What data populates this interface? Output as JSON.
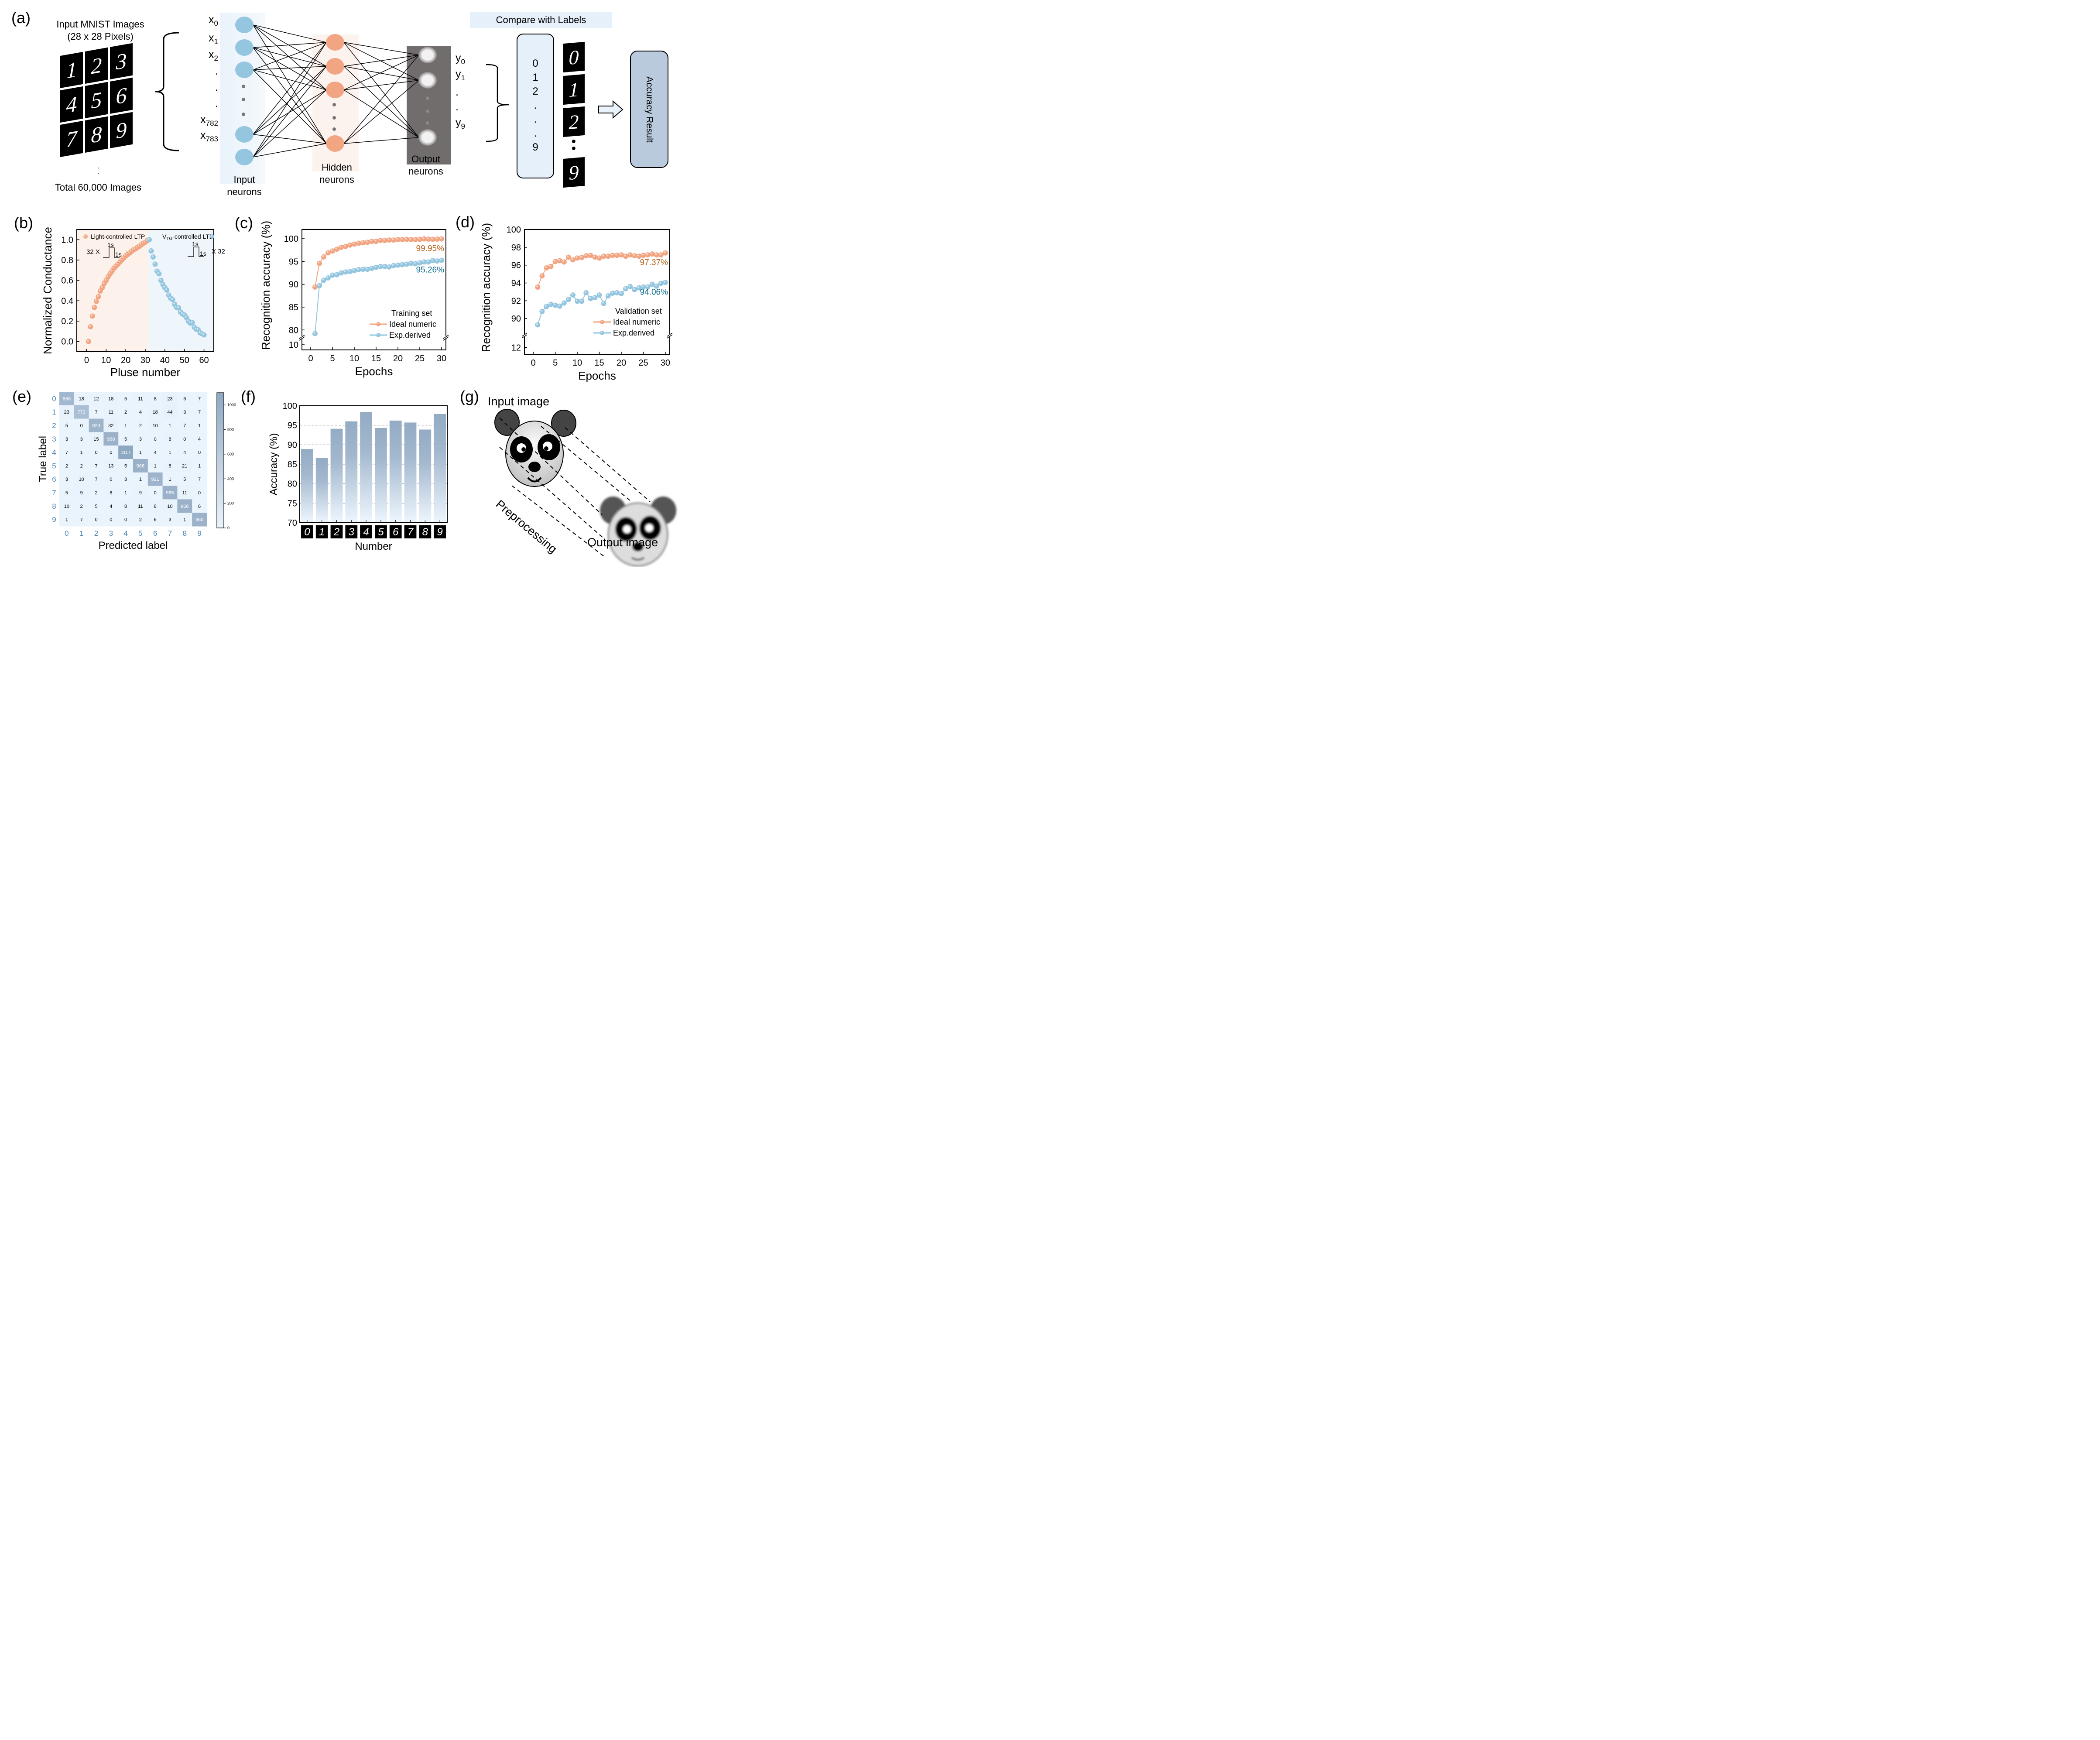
{
  "panel_labels": [
    "(a)",
    "(b)",
    "(c)",
    "(d)",
    "(e)",
    "(f)",
    "(g)"
  ],
  "colors": {
    "orange": "#F2A582",
    "blue": "#94C6E0",
    "orange_text": "#B8651E",
    "teal_text": "#0E6E8E",
    "ltp_bg": "#FDF1EB",
    "ltd_bg": "#EEF5FB",
    "heat_low": "#EAF4FD",
    "heat_high": "#8FA8C2",
    "tick_blue": "#4A86B6",
    "output_bg": "#706D6C",
    "box_light": "#E6F0FA",
    "box_steel": "#B9CADC"
  },
  "panel_a": {
    "title_line1": "Input MNIST  Images",
    "title_line2": "(28 x 28 Pixels)",
    "total": "Total 60,000 Images",
    "mnist_digits": [
      "1",
      "2",
      "3",
      "4",
      "5",
      "6",
      "7",
      "8",
      "9"
    ],
    "input_labels": [
      {
        "base": "x",
        "sub": "0"
      },
      {
        "base": "x",
        "sub": "1"
      },
      {
        "base": "x",
        "sub": "2"
      },
      {
        "base": ".",
        "sub": ""
      },
      {
        "base": ".",
        "sub": ""
      },
      {
        "base": ".",
        "sub": ""
      },
      {
        "base": "x",
        "sub": "782"
      },
      {
        "base": "x",
        "sub": "783"
      }
    ],
    "output_labels": [
      {
        "base": "y",
        "sub": "0"
      },
      {
        "base": "y",
        "sub": "1"
      },
      {
        "base": ".",
        "sub": ""
      },
      {
        "base": ".",
        "sub": ""
      },
      {
        "base": "y",
        "sub": "9"
      }
    ],
    "input_caption": [
      "Input",
      "neurons"
    ],
    "hidden_caption": [
      "Hidden",
      "neurons"
    ],
    "output_caption": [
      "Output",
      "neurons"
    ],
    "compare_label": "Compare with Labels",
    "label_column": [
      "0",
      "1",
      "2",
      ".",
      ".",
      ".",
      "9"
    ],
    "label_digits": [
      "0",
      "1",
      "2",
      "9"
    ],
    "accuracy_box": "Accuracy Result"
  },
  "chart_data": [
    {
      "id": "b",
      "type": "scatter",
      "xlabel": "Pluse number",
      "ylabel": "Normalized Conductance",
      "xlim": [
        -5,
        65
      ],
      "ylim": [
        -0.1,
        1.1
      ],
      "xticks": [
        0,
        10,
        20,
        30,
        40,
        50,
        60
      ],
      "yticks": [
        0.0,
        0.2,
        0.4,
        0.6,
        0.8,
        1.0
      ],
      "ytick_labels": [
        "0.0",
        "0.2",
        "0.4",
        "0.6",
        "0.8",
        "1.0"
      ],
      "regions": [
        {
          "name": "LTP",
          "x_range": [
            -5,
            31.5
          ],
          "color": "#FDF1EB"
        },
        {
          "name": "LTD",
          "x_range": [
            31.5,
            65
          ],
          "color": "#EEF5FB"
        }
      ],
      "annotations": [
        {
          "text": "32 X",
          "pulse": "1s",
          "width": "1s"
        },
        {
          "text": "X 32",
          "pulse": "1s",
          "width": "1s"
        }
      ],
      "series": [
        {
          "name": "Light-controlled LTP",
          "color": "#F2A582",
          "x": [
            1,
            2,
            3,
            4,
            5,
            6,
            7,
            8,
            9,
            10,
            11,
            12,
            13,
            14,
            15,
            16,
            17,
            18,
            19,
            20,
            21,
            22,
            23,
            24,
            25,
            26,
            27,
            28,
            29,
            30,
            31,
            32
          ],
          "y": [
            0.0,
            0.145,
            0.25,
            0.335,
            0.395,
            0.44,
            0.495,
            0.53,
            0.57,
            0.6,
            0.635,
            0.665,
            0.69,
            0.72,
            0.74,
            0.76,
            0.78,
            0.8,
            0.82,
            0.84,
            0.855,
            0.87,
            0.885,
            0.9,
            0.91,
            0.925,
            0.935,
            0.95,
            0.965,
            0.975,
            0.99,
            1.0
          ]
        },
        {
          "name": "V_TG-controlled LTD",
          "name_base": "V",
          "name_sub": "TG",
          "name_rest": "-controlled LTD",
          "color": "#94C6E0",
          "x": [
            32,
            33,
            34,
            35,
            36,
            37,
            38,
            39,
            40,
            41,
            42,
            43,
            44,
            45,
            46,
            47,
            48,
            49,
            50,
            51,
            52,
            53,
            54,
            55,
            56,
            57,
            58,
            59,
            60
          ],
          "y": [
            1.0,
            0.89,
            0.83,
            0.76,
            0.69,
            0.665,
            0.6,
            0.56,
            0.53,
            0.505,
            0.455,
            0.425,
            0.41,
            0.365,
            0.335,
            0.33,
            0.29,
            0.27,
            0.26,
            0.235,
            0.2,
            0.18,
            0.185,
            0.14,
            0.12,
            0.115,
            0.085,
            0.075,
            0.065
          ]
        }
      ]
    },
    {
      "id": "c",
      "type": "line",
      "xlabel": "Epochs",
      "ylabel": "Recognition accuracy (%)",
      "xlim": [
        -2,
        31
      ],
      "ylim_upper": [
        78.5,
        102
      ],
      "ylim_lower": [
        8,
        12
      ],
      "axis_break": true,
      "xticks": [
        0,
        5,
        10,
        15,
        20,
        25,
        30
      ],
      "yticks": [
        80,
        85,
        90,
        95,
        100
      ],
      "yticks_lower": [
        10
      ],
      "legend_title": "Training set",
      "legend_position": "bottom-right",
      "final_labels": [
        "99.95%",
        "95.26%"
      ],
      "series": [
        {
          "name": "Ideal numeric",
          "color": "#F2A582",
          "x": [
            1,
            2,
            3,
            4,
            5,
            6,
            7,
            8,
            9,
            10,
            11,
            12,
            13,
            14,
            15,
            16,
            17,
            18,
            19,
            20,
            21,
            22,
            23,
            24,
            25,
            26,
            27,
            28,
            29,
            30
          ],
          "y": [
            89.4,
            94.6,
            96.0,
            96.9,
            97.3,
            97.7,
            98.1,
            98.3,
            98.6,
            98.8,
            99.0,
            99.1,
            99.2,
            99.4,
            99.4,
            99.6,
            99.6,
            99.7,
            99.7,
            99.8,
            99.8,
            99.85,
            99.8,
            99.8,
            99.85,
            99.95,
            99.9,
            99.85,
            99.9,
            99.95
          ]
        },
        {
          "name": "Exp.derived",
          "color": "#94C6E0",
          "x": [
            1,
            2,
            3,
            4,
            5,
            6,
            7,
            8,
            9,
            10,
            11,
            12,
            13,
            14,
            15,
            16,
            17,
            18,
            19,
            20,
            21,
            22,
            23,
            24,
            25,
            26,
            27,
            28,
            29,
            30
          ],
          "y": [
            79.2,
            89.7,
            90.9,
            91.4,
            92.0,
            92.1,
            92.5,
            92.7,
            92.8,
            93.0,
            93.2,
            93.3,
            93.3,
            93.5,
            93.7,
            93.9,
            93.9,
            93.8,
            94.1,
            94.2,
            94.3,
            94.4,
            94.6,
            94.5,
            94.7,
            94.9,
            94.9,
            95.2,
            95.1,
            95.26
          ]
        }
      ]
    },
    {
      "id": "d",
      "type": "line",
      "xlabel": "Epochs",
      "ylabel": "Recognition accuracy (%)",
      "xlim": [
        -2,
        31
      ],
      "ylim_upper": [
        88.2,
        100
      ],
      "ylim_lower": [
        11,
        13.5
      ],
      "axis_break": true,
      "xticks": [
        0,
        5,
        10,
        15,
        20,
        25,
        30
      ],
      "yticks": [
        90,
        92,
        94,
        96,
        98,
        100
      ],
      "yticks_lower": [
        12
      ],
      "legend_title": "Validation set",
      "legend_position": "bottom-right",
      "final_labels": [
        "97.37%",
        "94.06%"
      ],
      "series": [
        {
          "name": "Ideal numeric",
          "color": "#F2A582",
          "x": [
            1,
            2,
            3,
            4,
            5,
            6,
            7,
            8,
            9,
            10,
            11,
            12,
            13,
            14,
            15,
            16,
            17,
            18,
            19,
            20,
            21,
            22,
            23,
            24,
            25,
            26,
            27,
            28,
            29,
            30
          ],
          "y": [
            93.53,
            94.8,
            95.7,
            95.85,
            96.4,
            96.5,
            96.35,
            96.9,
            96.6,
            96.8,
            96.85,
            97.05,
            97.1,
            96.9,
            96.8,
            97.0,
            97.0,
            97.1,
            97.1,
            97.15,
            97.0,
            97.15,
            97.05,
            97.0,
            97.1,
            97.15,
            97.25,
            97.15,
            97.15,
            97.37
          ]
        },
        {
          "name": "Exp.derived",
          "color": "#94C6E0",
          "x": [
            1,
            2,
            3,
            4,
            5,
            6,
            7,
            8,
            9,
            10,
            11,
            12,
            13,
            14,
            15,
            16,
            17,
            18,
            19,
            20,
            21,
            22,
            23,
            24,
            25,
            26,
            27,
            28,
            29,
            30
          ],
          "y": [
            89.3,
            90.8,
            91.35,
            91.6,
            91.5,
            91.4,
            91.75,
            92.15,
            92.65,
            91.95,
            91.95,
            92.9,
            92.25,
            92.35,
            92.65,
            91.7,
            92.55,
            92.85,
            92.9,
            92.8,
            93.35,
            93.6,
            93.25,
            93.45,
            93.55,
            93.55,
            93.85,
            93.65,
            93.95,
            94.06
          ]
        }
      ]
    },
    {
      "id": "e",
      "type": "heatmap",
      "xlabel": "Predicted label",
      "ylabel": "True label",
      "x_categories": [
        "0",
        "1",
        "2",
        "3",
        "4",
        "5",
        "6",
        "7",
        "8",
        "9"
      ],
      "y_categories": [
        "0",
        "1",
        "2",
        "3",
        "4",
        "5",
        "6",
        "7",
        "8",
        "9"
      ],
      "values": [
        [
          866,
          18,
          12,
          18,
          5,
          11,
          8,
          23,
          6,
          7
        ],
        [
          23,
          773,
          7,
          11,
          2,
          4,
          18,
          44,
          3,
          7
        ],
        [
          5,
          0,
          923,
          32,
          1,
          2,
          10,
          1,
          7,
          1
        ],
        [
          3,
          3,
          15,
          968,
          5,
          3,
          0,
          8,
          0,
          4
        ],
        [
          7,
          1,
          0,
          0,
          1117,
          1,
          4,
          1,
          4,
          0
        ],
        [
          2,
          2,
          7,
          13,
          5,
          968,
          1,
          8,
          21,
          1
        ],
        [
          3,
          10,
          7,
          0,
          3,
          1,
          921,
          1,
          5,
          7
        ],
        [
          5,
          9,
          2,
          8,
          1,
          9,
          0,
          965,
          11,
          0
        ],
        [
          10,
          2,
          5,
          4,
          8,
          11,
          8,
          10,
          968,
          6
        ],
        [
          1,
          7,
          0,
          0,
          0,
          2,
          6,
          3,
          1,
          960
        ]
      ],
      "colorbar": {
        "range": [
          0,
          1100
        ],
        "ticks": [
          0,
          200,
          400,
          600,
          800,
          1000
        ]
      }
    },
    {
      "id": "f",
      "type": "bar",
      "xlabel": "Number",
      "ylabel": "Accuracy (%)",
      "categories": [
        "0",
        "1",
        "2",
        "3",
        "4",
        "5",
        "6",
        "7",
        "8",
        "9"
      ],
      "values": [
        88.9,
        86.6,
        94.1,
        96.0,
        98.4,
        94.3,
        96.2,
        95.7,
        93.9,
        97.9
      ],
      "ylim": [
        70,
        100
      ],
      "yticks": [
        70,
        75,
        80,
        85,
        90,
        95,
        100
      ],
      "grid": "horizontal-dashed"
    }
  ],
  "panel_g": {
    "input_label": "Input image",
    "process_label": "Preprocessing",
    "output_label": "Output image"
  }
}
